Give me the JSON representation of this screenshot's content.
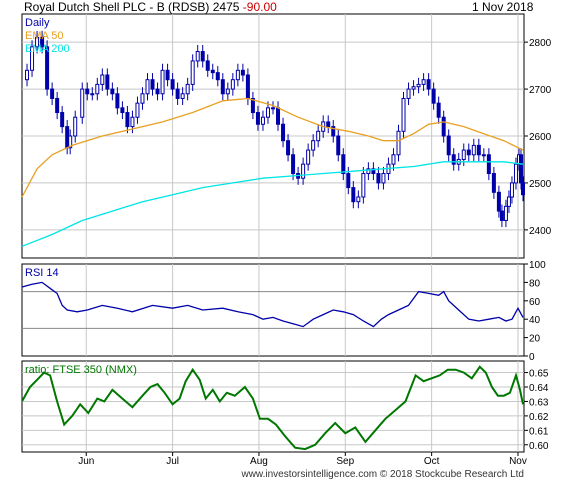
{
  "header": {
    "title": "Royal Dutch Shell PLC - B (RDSB)",
    "last_price": "2475",
    "change": "-90.00",
    "date": "1 Nov 2018"
  },
  "colors": {
    "price": "#0000aa",
    "ema50": "#e8a020",
    "ema200": "#00e5e5",
    "rsi": "#0000aa",
    "ratio": "#007700",
    "grid": "#c8c8c8",
    "rsi_level": "#888888",
    "frame": "#000000"
  },
  "footer": {
    "credit": "www.investorsintelligence.com  © 2018 Stockcube Research Ltd"
  },
  "chart_data": [
    {
      "type": "line",
      "panel": "price",
      "legend": [
        "Daily",
        "EMA 50",
        "EMA 200"
      ],
      "x_tick_labels": [
        "Jun",
        "Jul",
        "Aug",
        "Sep",
        "Oct",
        "Nov"
      ],
      "y_ticks": [
        2400,
        2500,
        2600,
        2700,
        2800
      ],
      "ylim": [
        2340,
        2860
      ],
      "grid": true,
      "series": [
        {
          "name": "Daily",
          "style": "candles",
          "points": [
            [
              0,
              2720
            ],
            [
              5,
              2740
            ],
            [
              10,
              2790
            ],
            [
              15,
              2810
            ],
            [
              20,
              2790
            ],
            [
              25,
              2700
            ],
            [
              30,
              2680
            ],
            [
              35,
              2650
            ],
            [
              40,
              2620
            ],
            [
              45,
              2575
            ],
            [
              48,
              2600
            ],
            [
              53,
              2640
            ],
            [
              60,
              2700
            ],
            [
              65,
              2690
            ],
            [
              70,
              2690
            ],
            [
              75,
              2710
            ],
            [
              80,
              2730
            ],
            [
              85,
              2700
            ],
            [
              90,
              2690
            ],
            [
              95,
              2660
            ],
            [
              100,
              2650
            ],
            [
              105,
              2620
            ],
            [
              110,
              2640
            ],
            [
              115,
              2670
            ],
            [
              120,
              2690
            ],
            [
              125,
              2720
            ],
            [
              130,
              2700
            ],
            [
              135,
              2690
            ],
            [
              140,
              2740
            ],
            [
              145,
              2720
            ],
            [
              150,
              2700
            ],
            [
              155,
              2680
            ],
            [
              160,
              2690
            ],
            [
              165,
              2710
            ],
            [
              170,
              2760
            ],
            [
              175,
              2780
            ],
            [
              180,
              2760
            ],
            [
              185,
              2740
            ],
            [
              190,
              2735
            ],
            [
              195,
              2720
            ],
            [
              200,
              2690
            ],
            [
              205,
              2700
            ],
            [
              210,
              2720
            ],
            [
              215,
              2740
            ],
            [
              220,
              2730
            ],
            [
              225,
              2680
            ],
            [
              230,
              2650
            ],
            [
              235,
              2625
            ],
            [
              240,
              2640
            ],
            [
              245,
              2660
            ],
            [
              250,
              2660
            ],
            [
              255,
              2625
            ],
            [
              260,
              2590
            ],
            [
              265,
              2560
            ],
            [
              270,
              2520
            ],
            [
              275,
              2510
            ],
            [
              280,
              2540
            ],
            [
              285,
              2570
            ],
            [
              290,
              2590
            ],
            [
              295,
              2610
            ],
            [
              300,
              2630
            ],
            [
              305,
              2620
            ],
            [
              310,
              2600
            ],
            [
              315,
              2560
            ],
            [
              320,
              2520
            ],
            [
              325,
              2490
            ],
            [
              330,
              2460
            ],
            [
              335,
              2470
            ],
            [
              340,
              2520
            ],
            [
              345,
              2530
            ],
            [
              350,
              2520
            ],
            [
              355,
              2500
            ],
            [
              360,
              2520
            ],
            [
              365,
              2540
            ],
            [
              370,
              2560
            ],
            [
              375,
              2610
            ],
            [
              380,
              2680
            ],
            [
              385,
              2700
            ],
            [
              390,
              2705
            ],
            [
              395,
              2710
            ],
            [
              400,
              2720
            ],
            [
              405,
              2700
            ],
            [
              410,
              2670
            ],
            [
              415,
              2640
            ],
            [
              420,
              2600
            ],
            [
              425,
              2560
            ],
            [
              430,
              2540
            ],
            [
              435,
              2550
            ],
            [
              440,
              2570
            ],
            [
              445,
              2560
            ],
            [
              450,
              2580
            ],
            [
              455,
              2560
            ],
            [
              460,
              2560
            ],
            [
              465,
              2520
            ],
            [
              470,
              2480
            ],
            [
              475,
              2440
            ],
            [
              478,
              2420
            ],
            [
              482,
              2450
            ],
            [
              485,
              2470
            ],
            [
              488,
              2500
            ],
            [
              492,
              2540
            ],
            [
              495,
              2560
            ],
            [
              497,
              2500
            ],
            [
              499,
              2475
            ]
          ]
        },
        {
          "name": "EMA 50",
          "points": [
            [
              0,
              2470
            ],
            [
              15,
              2530
            ],
            [
              30,
              2560
            ],
            [
              50,
              2580
            ],
            [
              80,
              2600
            ],
            [
              110,
              2615
            ],
            [
              140,
              2630
            ],
            [
              170,
              2650
            ],
            [
              200,
              2675
            ],
            [
              225,
              2680
            ],
            [
              250,
              2665
            ],
            [
              275,
              2640
            ],
            [
              300,
              2620
            ],
            [
              325,
              2610
            ],
            [
              345,
              2600
            ],
            [
              360,
              2590
            ],
            [
              375,
              2590
            ],
            [
              390,
              2605
            ],
            [
              405,
              2625
            ],
            [
              420,
              2630
            ],
            [
              440,
              2620
            ],
            [
              460,
              2605
            ],
            [
              480,
              2590
            ],
            [
              499,
              2570
            ]
          ]
        },
        {
          "name": "EMA 200",
          "points": [
            [
              0,
              2365
            ],
            [
              30,
              2390
            ],
            [
              60,
              2420
            ],
            [
              90,
              2440
            ],
            [
              120,
              2460
            ],
            [
              150,
              2475
            ],
            [
              180,
              2490
            ],
            [
              210,
              2500
            ],
            [
              240,
              2510
            ],
            [
              270,
              2515
            ],
            [
              300,
              2520
            ],
            [
              330,
              2525
            ],
            [
              360,
              2530
            ],
            [
              390,
              2535
            ],
            [
              420,
              2545
            ],
            [
              450,
              2545
            ],
            [
              480,
              2545
            ],
            [
              499,
              2540
            ]
          ]
        }
      ]
    },
    {
      "type": "line",
      "panel": "rsi",
      "title": "RSI 14",
      "y_ticks": [
        0,
        20,
        40,
        60,
        80,
        100
      ],
      "ylim": [
        0,
        100
      ],
      "levels": [
        30,
        70
      ],
      "series": [
        {
          "name": "RSI 14",
          "points": [
            [
              0,
              75
            ],
            [
              10,
              78
            ],
            [
              20,
              80
            ],
            [
              30,
              72
            ],
            [
              35,
              68
            ],
            [
              40,
              55
            ],
            [
              45,
              50
            ],
            [
              55,
              48
            ],
            [
              65,
              50
            ],
            [
              80,
              55
            ],
            [
              95,
              52
            ],
            [
              110,
              48
            ],
            [
              130,
              55
            ],
            [
              150,
              52
            ],
            [
              165,
              55
            ],
            [
              180,
              50
            ],
            [
              200,
              52
            ],
            [
              215,
              48
            ],
            [
              230,
              45
            ],
            [
              240,
              40
            ],
            [
              250,
              42
            ],
            [
              260,
              38
            ],
            [
              270,
              35
            ],
            [
              280,
              32
            ],
            [
              290,
              40
            ],
            [
              300,
              45
            ],
            [
              310,
              50
            ],
            [
              320,
              48
            ],
            [
              330,
              45
            ],
            [
              340,
              38
            ],
            [
              350,
              32
            ],
            [
              358,
              40
            ],
            [
              365,
              45
            ],
            [
              375,
              50
            ],
            [
              385,
              55
            ],
            [
              395,
              70
            ],
            [
              405,
              68
            ],
            [
              415,
              66
            ],
            [
              420,
              70
            ],
            [
              425,
              60
            ],
            [
              435,
              50
            ],
            [
              445,
              40
            ],
            [
              455,
              38
            ],
            [
              465,
              40
            ],
            [
              475,
              42
            ],
            [
              482,
              38
            ],
            [
              488,
              40
            ],
            [
              494,
              52
            ],
            [
              499,
              42
            ]
          ]
        }
      ]
    },
    {
      "type": "line",
      "panel": "ratio",
      "title": "ratio: FTSE 350 (NMX)",
      "y_ticks": [
        0.6,
        0.61,
        0.62,
        0.63,
        0.64,
        0.65
      ],
      "ylim": [
        0.595,
        0.658
      ],
      "series": [
        {
          "name": "ratio: FTSE 350 (NMX)",
          "points": [
            [
              0,
              0.63
            ],
            [
              8,
              0.64
            ],
            [
              15,
              0.645
            ],
            [
              22,
              0.65
            ],
            [
              28,
              0.648
            ],
            [
              35,
              0.63
            ],
            [
              42,
              0.614
            ],
            [
              50,
              0.62
            ],
            [
              58,
              0.628
            ],
            [
              66,
              0.622
            ],
            [
              75,
              0.632
            ],
            [
              82,
              0.63
            ],
            [
              90,
              0.638
            ],
            [
              100,
              0.632
            ],
            [
              110,
              0.626
            ],
            [
              120,
              0.634
            ],
            [
              128,
              0.64
            ],
            [
              135,
              0.642
            ],
            [
              142,
              0.636
            ],
            [
              150,
              0.628
            ],
            [
              157,
              0.632
            ],
            [
              163,
              0.644
            ],
            [
              170,
              0.652
            ],
            [
              177,
              0.645
            ],
            [
              183,
              0.632
            ],
            [
              190,
              0.638
            ],
            [
              197,
              0.63
            ],
            [
              204,
              0.636
            ],
            [
              212,
              0.634
            ],
            [
              222,
              0.64
            ],
            [
              230,
              0.632
            ],
            [
              237,
              0.618
            ],
            [
              245,
              0.618
            ],
            [
              253,
              0.614
            ],
            [
              262,
              0.606
            ],
            [
              272,
              0.598
            ],
            [
              282,
              0.597
            ],
            [
              292,
              0.6
            ],
            [
              302,
              0.608
            ],
            [
              312,
              0.615
            ],
            [
              322,
              0.608
            ],
            [
              332,
              0.612
            ],
            [
              342,
              0.602
            ],
            [
              352,
              0.61
            ],
            [
              362,
              0.618
            ],
            [
              372,
              0.624
            ],
            [
              382,
              0.63
            ],
            [
              392,
              0.648
            ],
            [
              400,
              0.644
            ],
            [
              408,
              0.646
            ],
            [
              416,
              0.648
            ],
            [
              424,
              0.652
            ],
            [
              432,
              0.652
            ],
            [
              440,
              0.65
            ],
            [
              448,
              0.646
            ],
            [
              456,
              0.654
            ],
            [
              462,
              0.65
            ],
            [
              468,
              0.64
            ],
            [
              474,
              0.634
            ],
            [
              480,
              0.634
            ],
            [
              486,
              0.636
            ],
            [
              492,
              0.648
            ],
            [
              496,
              0.638
            ],
            [
              499,
              0.628
            ]
          ]
        }
      ]
    }
  ]
}
